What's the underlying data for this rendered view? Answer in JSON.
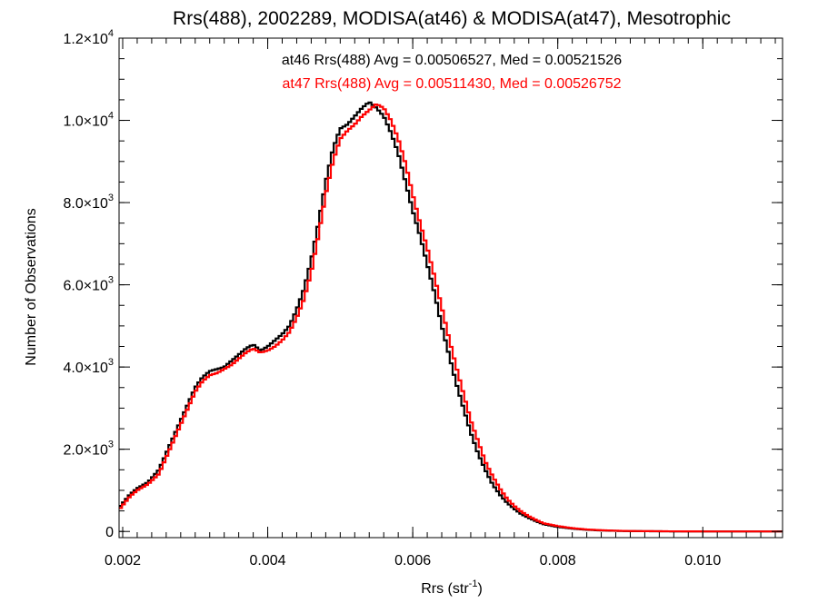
{
  "chart_data": {
    "type": "line",
    "step": true,
    "title": "Rrs(488), 2002289, MODISA(at46) & MODISA(at47), Mesotrophic",
    "xlabel": {
      "base": "Rrs (str",
      "sup": "-1",
      "tail": ")"
    },
    "ylabel": "Number of Observations",
    "xlim": [
      0.00195,
      0.0111
    ],
    "ylim": [
      -150,
      12000
    ],
    "x_ticks": [
      {
        "value": 0.002,
        "label": "0.002"
      },
      {
        "value": 0.004,
        "label": "0.004"
      },
      {
        "value": 0.006,
        "label": "0.006"
      },
      {
        "value": 0.008,
        "label": "0.008"
      },
      {
        "value": 0.01,
        "label": "0.010"
      }
    ],
    "x_minor_step": 0.0002,
    "y_ticks": [
      {
        "value": 0,
        "mant": "0",
        "exp": ""
      },
      {
        "value": 2000,
        "mant": "2.0×10",
        "exp": "3"
      },
      {
        "value": 4000,
        "mant": "4.0×10",
        "exp": "3"
      },
      {
        "value": 6000,
        "mant": "6.0×10",
        "exp": "3"
      },
      {
        "value": 8000,
        "mant": "8.0×10",
        "exp": "3"
      },
      {
        "value": 10000,
        "mant": "1.0×10",
        "exp": "4"
      },
      {
        "value": 12000,
        "mant": "1.2×10",
        "exp": "4"
      }
    ],
    "y_minor_step": 500,
    "annotations": [
      {
        "text": "at46 Rrs(488) Avg = 0.00506527, Med = 0.00521526",
        "color": "#000000"
      },
      {
        "text": "at47 Rrs(488) Avg = 0.00511430, Med = 0.00526752",
        "color": "#ff0000"
      }
    ],
    "bin_width": 4e-05,
    "series": [
      {
        "name": "at46",
        "color": "#000000",
        "x": [
          0.00196,
          0.0021,
          0.0022,
          0.00235,
          0.0025,
          0.0026,
          0.0027,
          0.0028,
          0.0029,
          0.003,
          0.0031,
          0.0032,
          0.0033,
          0.0034,
          0.0035,
          0.0036,
          0.0037,
          0.0038,
          0.0039,
          0.004,
          0.0041,
          0.0042,
          0.0043,
          0.0044,
          0.0045,
          0.0046,
          0.0047,
          0.0048,
          0.0049,
          0.005,
          0.0051,
          0.0052,
          0.0053,
          0.0054,
          0.0055,
          0.0056,
          0.0057,
          0.0058,
          0.0059,
          0.006,
          0.0061,
          0.0062,
          0.0063,
          0.0064,
          0.0065,
          0.0066,
          0.0067,
          0.0068,
          0.0069,
          0.007,
          0.0071,
          0.0072,
          0.0073,
          0.0074,
          0.0075,
          0.0076,
          0.0077,
          0.0078,
          0.008,
          0.0082,
          0.0084,
          0.0086,
          0.0088,
          0.009,
          0.0095,
          0.01,
          0.0105,
          0.0111
        ],
        "y": [
          600,
          900,
          1050,
          1200,
          1500,
          1900,
          2300,
          2700,
          3100,
          3500,
          3750,
          3900,
          3950,
          4000,
          4150,
          4300,
          4450,
          4550,
          4400,
          4500,
          4650,
          4800,
          5000,
          5400,
          5900,
          6600,
          7500,
          8500,
          9300,
          9800,
          9900,
          10100,
          10300,
          10450,
          10300,
          10100,
          9700,
          9200,
          8500,
          7800,
          7200,
          6500,
          5800,
          5000,
          4300,
          3600,
          3000,
          2400,
          1900,
          1500,
          1150,
          900,
          700,
          550,
          420,
          330,
          250,
          180,
          110,
          70,
          40,
          25,
          15,
          8,
          3,
          1,
          0,
          0
        ]
      },
      {
        "name": "at47",
        "color": "#ff0000",
        "x": [
          0.00196,
          0.0021,
          0.0022,
          0.00235,
          0.0025,
          0.0026,
          0.0027,
          0.0028,
          0.0029,
          0.003,
          0.0031,
          0.0032,
          0.0033,
          0.0034,
          0.0035,
          0.0036,
          0.0037,
          0.0038,
          0.0039,
          0.004,
          0.0041,
          0.0042,
          0.0043,
          0.0044,
          0.0045,
          0.0046,
          0.0047,
          0.0048,
          0.0049,
          0.005,
          0.0051,
          0.0052,
          0.0053,
          0.0054,
          0.0055,
          0.0056,
          0.0057,
          0.0058,
          0.0059,
          0.006,
          0.0061,
          0.0062,
          0.0063,
          0.0064,
          0.0065,
          0.0066,
          0.0067,
          0.0068,
          0.0069,
          0.007,
          0.0071,
          0.0072,
          0.0073,
          0.0074,
          0.0075,
          0.0076,
          0.0077,
          0.0078,
          0.008,
          0.0082,
          0.0084,
          0.0086,
          0.0088,
          0.009,
          0.0095,
          0.01,
          0.0105,
          0.0111
        ],
        "y": [
          550,
          850,
          1000,
          1150,
          1400,
          1800,
          2200,
          2600,
          3000,
          3400,
          3650,
          3800,
          3850,
          3950,
          4050,
          4200,
          4350,
          4450,
          4350,
          4400,
          4500,
          4650,
          4850,
          5200,
          5650,
          6300,
          7200,
          8200,
          9000,
          9550,
          9750,
          9900,
          10100,
          10250,
          10400,
          10300,
          10000,
          9550,
          8950,
          8200,
          7500,
          6900,
          6200,
          5450,
          4700,
          4000,
          3350,
          2700,
          2200,
          1700,
          1350,
          1050,
          800,
          620,
          480,
          370,
          280,
          200,
          130,
          80,
          48,
          30,
          18,
          10,
          4,
          1,
          0,
          0
        ]
      }
    ]
  }
}
